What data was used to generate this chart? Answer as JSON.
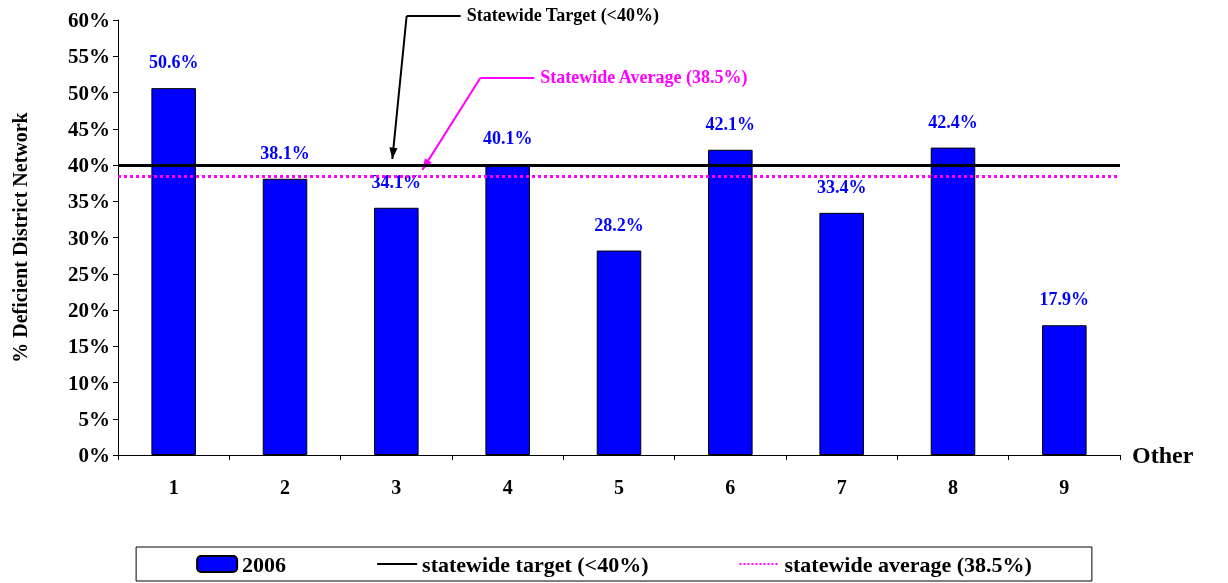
{
  "chart_data": {
    "type": "bar",
    "xlabel": "Other",
    "ylabel": "% Deficient District Network",
    "categories": [
      "1",
      "2",
      "3",
      "4",
      "5",
      "6",
      "7",
      "8",
      "9"
    ],
    "series": [
      {
        "name": "2006",
        "color": "#0000ff",
        "values": [
          50.6,
          38.1,
          34.1,
          40.1,
          28.2,
          42.1,
          33.4,
          42.4,
          17.9
        ],
        "value_labels": [
          "50.6%",
          "38.1%",
          "34.1%",
          "40.1%",
          "28.2%",
          "42.1%",
          "33.4%",
          "42.4%",
          "17.9%"
        ]
      }
    ],
    "ylim": [
      0,
      60
    ],
    "yticks": [
      {
        "value": 0,
        "label": "0%"
      },
      {
        "value": 5,
        "label": "5%"
      },
      {
        "value": 10,
        "label": "10%"
      },
      {
        "value": 15,
        "label": "15%"
      },
      {
        "value": 20,
        "label": "20%"
      },
      {
        "value": 25,
        "label": "25%"
      },
      {
        "value": 30,
        "label": "30%"
      },
      {
        "value": 35,
        "label": "35%"
      },
      {
        "value": 40,
        "label": "40%"
      },
      {
        "value": 45,
        "label": "45%"
      },
      {
        "value": 50,
        "label": "50%"
      },
      {
        "value": 55,
        "label": "55%"
      },
      {
        "value": 60,
        "label": "60%"
      }
    ],
    "ref_lines": [
      {
        "axis": "y",
        "value": 40,
        "label": "statewide target (<40%)",
        "color": "#000000",
        "line_style": "solid"
      },
      {
        "axis": "y",
        "value": 38.5,
        "label": "statewide average (38.5%)",
        "color": "#ff00ff",
        "line_style": "dotted"
      }
    ],
    "annotations": [
      "Statewide Target (<40%)",
      "Statewide Average (38.5%)"
    ],
    "grid": false,
    "legend": "bottom"
  }
}
